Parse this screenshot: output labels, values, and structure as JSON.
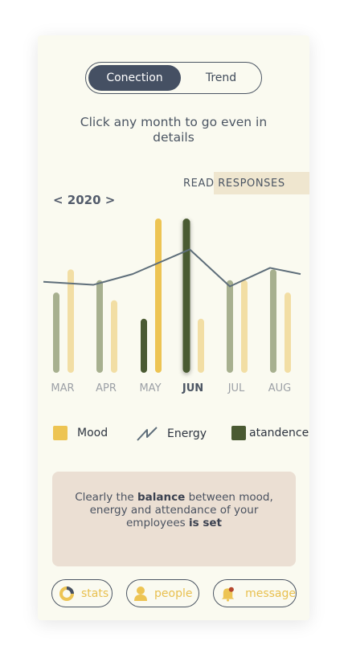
{
  "toggle": {
    "active_label": "Conection",
    "inactive_label": "Trend"
  },
  "instruction": "Click any month to go even in details",
  "read_responses_label": "READ RESPONSES",
  "year_selector": "< 2020 >",
  "colors": {
    "mood": "#edc453",
    "mood_light": "#f2dea4",
    "attendance": "#4a5a32",
    "attendance_light": "#a7b08f",
    "energy": "#5e6e7a"
  },
  "chart_data": {
    "type": "bar",
    "categories": [
      "MAR",
      "APR",
      "MAY",
      "JUN",
      "JUL",
      "AUG"
    ],
    "selected_category": "JUN",
    "ylim": [
      0,
      100
    ],
    "series": [
      {
        "name": "atandence",
        "values": [
          52,
          60,
          35,
          100,
          60,
          67
        ]
      },
      {
        "name": "Mood",
        "values": [
          67,
          47,
          100,
          35,
          60,
          52
        ]
      },
      {
        "name": "Energy",
        "values": [
          59,
          57,
          64,
          80,
          56,
          68
        ]
      }
    ]
  },
  "legend": [
    {
      "label": "Mood",
      "icon": "mood-swatch"
    },
    {
      "label": "Energy",
      "icon": "zigzag-line-icon"
    },
    {
      "label": "atandence",
      "icon": "attendance-swatch"
    }
  ],
  "insight": {
    "p1": "Clearly the ",
    "b1": "balance",
    "p2": " between mood, energy and attendance of your employees ",
    "b2": "is set"
  },
  "nav": {
    "stats": "stats",
    "people": "people",
    "message": "message"
  }
}
